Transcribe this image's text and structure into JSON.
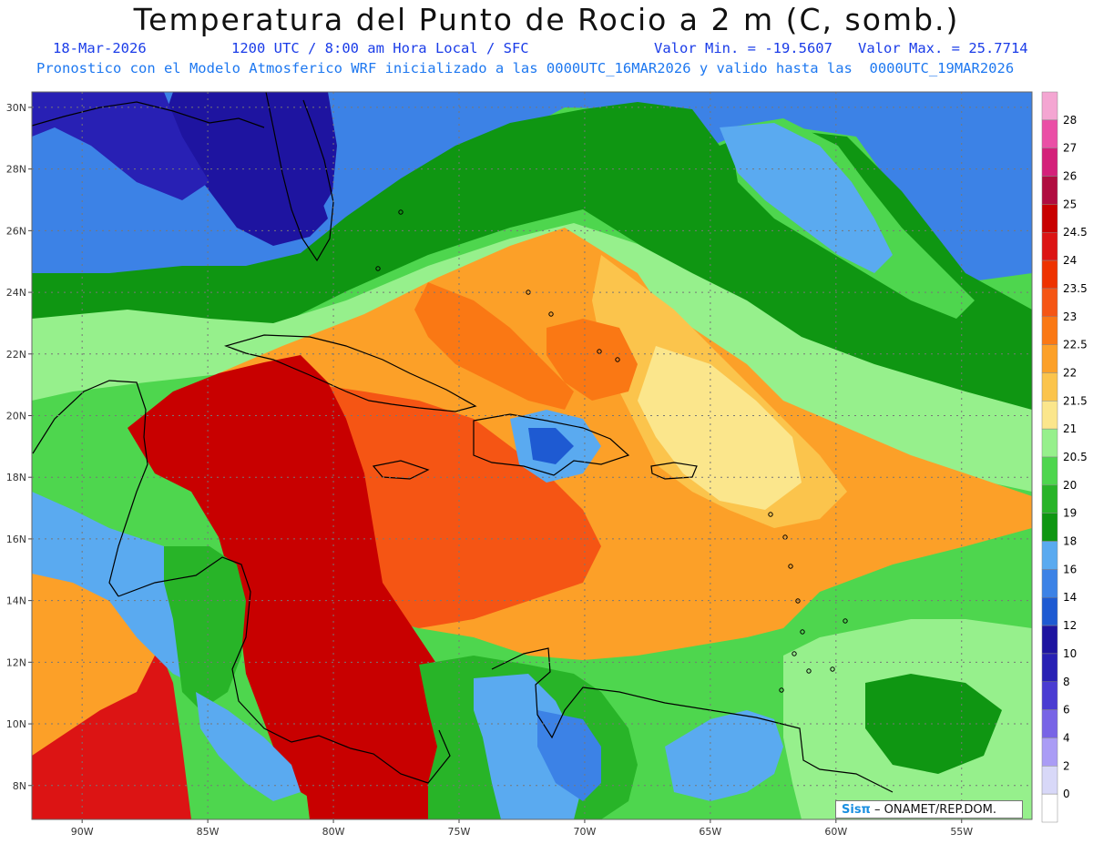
{
  "header": {
    "title": "Temperatura del Punto de Rocio a 2 m (C, somb.)",
    "date": "18-Mar-2026",
    "time": "1200 UTC / 8:00 am Hora Local / SFC",
    "valmin": "Valor Min. = -19.5607",
    "valmax": "Valor Max. = 25.7714",
    "model_line": "Pronostico con el Modelo Atmosferico WRF inicializado a las 0000UTC_16MAR2026 y valido hasta las  0000UTC_19MAR2026"
  },
  "map": {
    "extent": {
      "lon_min": -92,
      "lon_max": -52.2,
      "lat_min": 6.9,
      "lat_max": 30.5
    },
    "lat_ticks": [
      {
        "value": 30,
        "label": "30N"
      },
      {
        "value": 28,
        "label": "28N"
      },
      {
        "value": 26,
        "label": "26N"
      },
      {
        "value": 24,
        "label": "24N"
      },
      {
        "value": 22,
        "label": "22N"
      },
      {
        "value": 20,
        "label": "20N"
      },
      {
        "value": 18,
        "label": "18N"
      },
      {
        "value": 16,
        "label": "16N"
      },
      {
        "value": 14,
        "label": "14N"
      },
      {
        "value": 12,
        "label": "12N"
      },
      {
        "value": 10,
        "label": "10N"
      },
      {
        "value": 8,
        "label": "8N"
      }
    ],
    "lon_ticks": [
      {
        "value": -90,
        "label": "90W"
      },
      {
        "value": -85,
        "label": "85W"
      },
      {
        "value": -80,
        "label": "80W"
      },
      {
        "value": -75,
        "label": "75W"
      },
      {
        "value": -70,
        "label": "70W"
      },
      {
        "value": -65,
        "label": "65W"
      },
      {
        "value": -60,
        "label": "60W"
      },
      {
        "value": -55,
        "label": "55W"
      }
    ],
    "grid": "dotted"
  },
  "colorbar": {
    "levels": [
      {
        "label": "28",
        "color": "#f4a6d2"
      },
      {
        "label": "27",
        "color": "#ea4fa6"
      },
      {
        "label": "26",
        "color": "#d4207a"
      },
      {
        "label": "25",
        "color": "#b00d40"
      },
      {
        "label": "24.5",
        "color": "#c80000"
      },
      {
        "label": "24",
        "color": "#dc1414"
      },
      {
        "label": "23.5",
        "color": "#ee3200"
      },
      {
        "label": "23",
        "color": "#f55514"
      },
      {
        "label": "22.5",
        "color": "#fa7814"
      },
      {
        "label": "22",
        "color": "#fca028"
      },
      {
        "label": "21.5",
        "color": "#fbc44c"
      },
      {
        "label": "21",
        "color": "#fbe68c"
      },
      {
        "label": "20.5",
        "color": "#96f08c"
      },
      {
        "label": "20",
        "color": "#4ed64e"
      },
      {
        "label": "19",
        "color": "#28b428"
      },
      {
        "label": "18",
        "color": "#0f9612"
      },
      {
        "label": "16",
        "color": "#5aaaf0"
      },
      {
        "label": "14",
        "color": "#3c82e6"
      },
      {
        "label": "12",
        "color": "#1e5ad2"
      },
      {
        "label": "10",
        "color": "#1e14a0"
      },
      {
        "label": "8",
        "color": "#2820b4"
      },
      {
        "label": "6",
        "color": "#4a3cd2"
      },
      {
        "label": "4",
        "color": "#7864e6"
      },
      {
        "label": "2",
        "color": "#aa9cf5"
      },
      {
        "label": "0",
        "color": "#d8d8f8"
      }
    ],
    "below_color": "#ffffff"
  },
  "credit": {
    "logo": "Sisπ",
    "org": "ONAMET/REP.DOM."
  }
}
